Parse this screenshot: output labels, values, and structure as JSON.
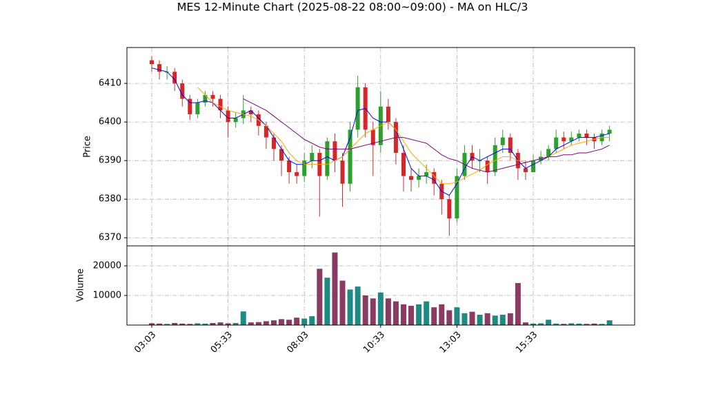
{
  "chart_data": [
    {
      "type": "candlestick",
      "title": "MES 12-Minute Chart (2025-08-22 08:00~09:00) - MA on HLC/3",
      "y_label": "Price",
      "open": [
        6416,
        6415,
        6413,
        6413,
        6410,
        6406,
        6402,
        6405,
        6407,
        6406,
        6403,
        6400,
        6401,
        6403,
        6402,
        6399,
        6396,
        6393,
        6390,
        6387,
        6386,
        6390,
        6392,
        6386,
        6395,
        6390,
        6384,
        6398,
        6409,
        6398,
        6394,
        6404,
        6400,
        6392,
        6386,
        6385,
        6386,
        6387,
        6384,
        6380,
        6375,
        6386,
        6392,
        6390,
        6390,
        6387,
        6394,
        6396,
        6392,
        6388,
        6387,
        6390,
        6391,
        6393,
        6396,
        6395,
        6396,
        6397,
        6396,
        6395,
        6397
      ],
      "high": [
        6417,
        6416,
        6414.5,
        6414,
        6411,
        6407,
        6406,
        6408,
        6408,
        6407,
        6404,
        6402.5,
        6407,
        6404,
        6403,
        6400,
        6397,
        6394,
        6391,
        6389,
        6392,
        6394,
        6393,
        6396,
        6397,
        6392,
        6400,
        6412,
        6410,
        6400,
        6408,
        6406,
        6401,
        6394,
        6388,
        6388,
        6389,
        6388,
        6385,
        6381,
        6388,
        6394,
        6394,
        6393,
        6391,
        6396,
        6398,
        6397,
        6393,
        6390,
        6391.5,
        6392.5,
        6394,
        6398,
        6397.5,
        6397.5,
        6398,
        6398,
        6397,
        6398,
        6399
      ],
      "low": [
        6413,
        6411,
        6411,
        6408,
        6404,
        6400.5,
        6401,
        6404,
        6404,
        6401,
        6396,
        6398.5,
        6399.5,
        6400,
        6396.5,
        6393,
        6390,
        6386,
        6384,
        6384,
        6384.5,
        6388,
        6375.5,
        6385,
        6387,
        6378,
        6382,
        6396,
        6396,
        6386,
        6392,
        6398,
        6389,
        6382,
        6382,
        6383,
        6384,
        6381,
        6376,
        6370.5,
        6374,
        6385,
        6388,
        6387,
        6384,
        6386,
        6392,
        6390,
        6385,
        6385,
        6387,
        6389,
        6390,
        6392,
        6393,
        6394,
        6395,
        6394,
        6393,
        6394,
        6395
      ],
      "close": [
        6415,
        6413,
        6413,
        6410,
        6406,
        6402,
        6405,
        6407,
        6406,
        6403,
        6400,
        6401,
        6403,
        6402,
        6399,
        6396,
        6393,
        6390,
        6387,
        6386,
        6390,
        6392,
        6386,
        6395,
        6390,
        6384,
        6398,
        6409,
        6398,
        6394,
        6404,
        6400,
        6392,
        6386,
        6385,
        6386,
        6387,
        6384,
        6380,
        6375,
        6386,
        6392,
        6390,
        6390,
        6387,
        6394,
        6396,
        6392,
        6388,
        6387,
        6390,
        6391,
        6393,
        6396,
        6395,
        6396,
        6397,
        6396,
        6395,
        6397,
        6398
      ],
      "up_color": "#2ca02c",
      "down_color": "#d62728",
      "series": [
        {
          "color": "#0000ff",
          "values": [
            6414,
            6413.5,
            6413,
            6411,
            6407,
            6405,
            6405,
            6405.5,
            6405,
            6403,
            6401,
            6401,
            6402,
            6403,
            6401,
            6399,
            6396,
            6393,
            6390,
            6389,
            6389,
            6390,
            6390,
            6391,
            6390,
            6391,
            6396,
            6403,
            6403.5,
            6401,
            6400,
            6400,
            6398,
            6393,
            6388,
            6386,
            6386,
            6385,
            6382,
            6381,
            6384,
            6388,
            6391,
            6390,
            6391,
            6392,
            6393,
            6393,
            6390,
            6388,
            6389,
            6390,
            6391,
            6393,
            6394,
            6395,
            6396,
            6396,
            6396,
            6396.5,
            6397
          ]
        },
        {
          "color": "#ffa500",
          "values": [
            null,
            null,
            null,
            null,
            null,
            null,
            6409,
            6407,
            6405,
            6404,
            6403,
            6402.5,
            6402,
            6401.5,
            6400.5,
            6399,
            6397,
            6395,
            6392,
            6390,
            6389,
            6389,
            6389,
            6389,
            6390,
            6391,
            6393,
            6395,
            6397,
            6398,
            6399,
            6400,
            6398,
            6395,
            6392,
            6390,
            6388,
            6386,
            6384,
            6384,
            6384.5,
            6385.5,
            6386.5,
            6387.5,
            6389,
            6390,
            6391,
            6391,
            6390,
            6389.5,
            6390,
            6390.5,
            6391,
            6392,
            6393,
            6394,
            6394.5,
            6395,
            6395.5,
            6396,
            6396
          ]
        },
        {
          "color": "#800080",
          "values": [
            null,
            null,
            null,
            null,
            null,
            null,
            null,
            null,
            null,
            null,
            null,
            null,
            6406,
            6405,
            6404,
            6403,
            6401.5,
            6400,
            6398.5,
            6397,
            6395.5,
            6394.5,
            6393.5,
            6393,
            6393,
            6393,
            6393,
            6393.5,
            6394,
            6394.5,
            6395,
            6395.5,
            6396,
            6396,
            6395.5,
            6395,
            6394.5,
            6393,
            6391.5,
            6390.5,
            6390,
            6389,
            6388,
            6387.5,
            6387,
            6387.5,
            6388,
            6388.5,
            6389,
            6389.5,
            6390,
            6390.5,
            6391,
            6391,
            6391.5,
            6391.5,
            6392,
            6392,
            6392.5,
            6393,
            6394
          ]
        }
      ],
      "ylim": [
        6367.9,
        6419.3
      ],
      "yticks": [
        6370,
        6380,
        6390,
        6400,
        6410
      ],
      "grid": true
    },
    {
      "type": "bar",
      "y_label": "Volume",
      "categories": [
        "03:03",
        null,
        null,
        null,
        null,
        null,
        null,
        null,
        null,
        null,
        "05:33",
        null,
        null,
        null,
        null,
        null,
        null,
        null,
        null,
        null,
        "08:03",
        null,
        null,
        null,
        null,
        null,
        null,
        null,
        null,
        null,
        "10:33",
        null,
        null,
        null,
        null,
        null,
        null,
        null,
        null,
        null,
        "13:03",
        null,
        null,
        null,
        null,
        null,
        null,
        null,
        null,
        null,
        "15:33",
        null,
        null,
        null,
        null,
        null,
        null,
        null,
        null,
        null,
        null
      ],
      "values": [
        600,
        500,
        400,
        700,
        500,
        400,
        600,
        500,
        700,
        900,
        600,
        700,
        4600,
        900,
        1000,
        1300,
        1600,
        2000,
        1800,
        2500,
        2200,
        3000,
        19000,
        16000,
        24500,
        15000,
        12000,
        13000,
        10000,
        9000,
        11000,
        9000,
        8000,
        7000,
        6500,
        7000,
        8000,
        6000,
        7000,
        5000,
        6000,
        4000,
        4500,
        3500,
        4000,
        3200,
        3500,
        4000,
        14200,
        900,
        500,
        600,
        1800,
        500,
        400,
        600,
        500,
        400,
        500,
        400,
        1600
      ],
      "up_color": "#1f8a84",
      "down_color": "#8b3a62",
      "ylim": [
        0,
        26740
      ],
      "yticks": [
        10000,
        20000
      ],
      "grid": true
    }
  ]
}
